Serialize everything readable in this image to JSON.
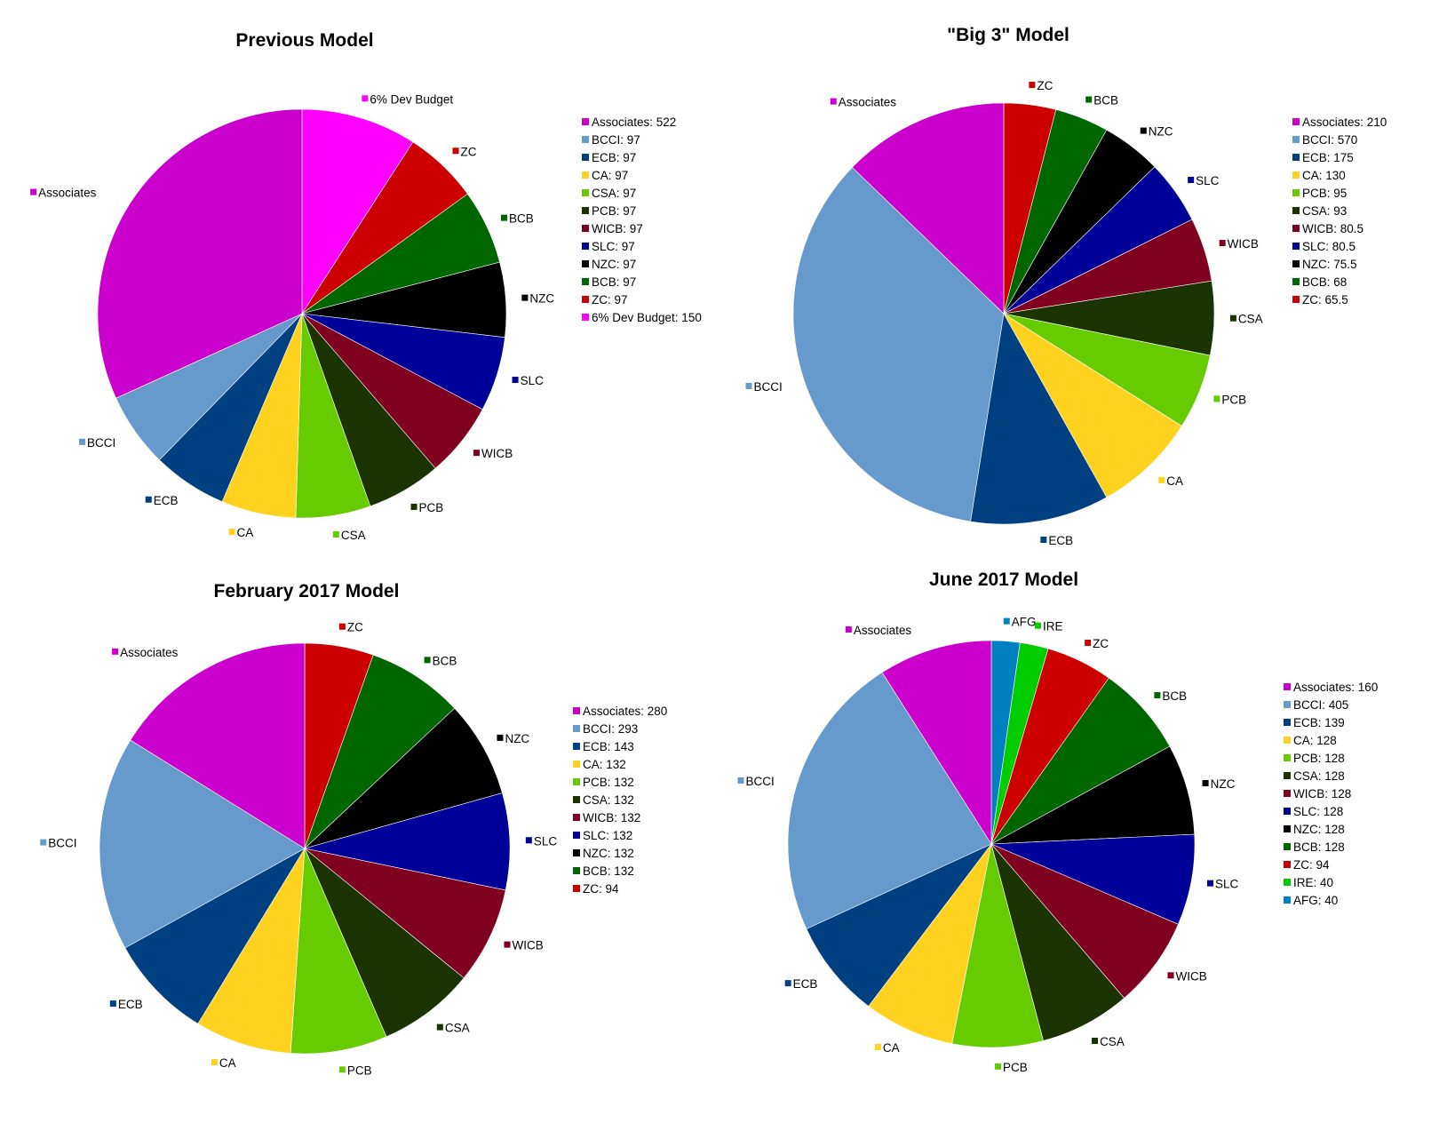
{
  "chart_data": [
    {
      "type": "pie",
      "title": "Previous Model",
      "legend_position": "right",
      "slices": [
        {
          "label": "Associates",
          "value": 522,
          "legend": "Associates: 522",
          "color": "#cc00cc"
        },
        {
          "label": "BCCI",
          "value": 97,
          "legend": "BCCI: 97",
          "color": "#6699cc"
        },
        {
          "label": "ECB",
          "value": 97,
          "legend": "ECB: 97",
          "color": "#004080"
        },
        {
          "label": "CA",
          "value": 97,
          "legend": "CA: 97",
          "color": "#ffd21f"
        },
        {
          "label": "CSA",
          "value": 97,
          "legend": "CSA: 97",
          "color": "#66cc00"
        },
        {
          "label": "PCB",
          "value": 97,
          "legend": "PCB: 97",
          "color": "#1a3300"
        },
        {
          "label": "WICB",
          "value": 97,
          "legend": "WICB: 97",
          "color": "#800020"
        },
        {
          "label": "SLC",
          "value": 97,
          "legend": "SLC: 97",
          "color": "#000099"
        },
        {
          "label": "NZC",
          "value": 97,
          "legend": "NZC: 97",
          "color": "#000000"
        },
        {
          "label": "BCB",
          "value": 97,
          "legend": "BCB: 97",
          "color": "#006600"
        },
        {
          "label": "ZC",
          "value": 97,
          "legend": "ZC: 97",
          "color": "#cc0000"
        },
        {
          "label": "6% Dev Budget",
          "value": 150,
          "legend": "6% Dev Budget: 150",
          "color": "#ff00ff"
        }
      ]
    },
    {
      "type": "pie",
      "title": "\"Big 3\" Model",
      "legend_position": "right",
      "slices": [
        {
          "label": "Associates",
          "value": 210,
          "legend": "Associates: 210",
          "color": "#cc00cc"
        },
        {
          "label": "BCCI",
          "value": 570,
          "legend": "BCCI: 570",
          "color": "#6699cc"
        },
        {
          "label": "ECB",
          "value": 175,
          "legend": "ECB: 175",
          "color": "#004080"
        },
        {
          "label": "CA",
          "value": 130,
          "legend": "CA: 130",
          "color": "#ffd21f"
        },
        {
          "label": "PCB",
          "value": 95,
          "legend": "PCB: 95",
          "color": "#66cc00"
        },
        {
          "label": "CSA",
          "value": 93,
          "legend": "CSA: 93",
          "color": "#1a3300"
        },
        {
          "label": "WICB",
          "value": 80.5,
          "legend": "WICB: 80.5",
          "color": "#800020"
        },
        {
          "label": "SLC",
          "value": 80.5,
          "legend": "SLC: 80.5",
          "color": "#000099"
        },
        {
          "label": "NZC",
          "value": 75.5,
          "legend": "NZC: 75.5",
          "color": "#000000"
        },
        {
          "label": "BCB",
          "value": 68,
          "legend": "BCB: 68",
          "color": "#006600"
        },
        {
          "label": "ZC",
          "value": 65.5,
          "legend": "ZC: 65.5",
          "color": "#cc0000"
        }
      ]
    },
    {
      "type": "pie",
      "title": "February 2017 Model",
      "legend_position": "right",
      "slices": [
        {
          "label": "Associates",
          "value": 280,
          "legend": "Associates: 280",
          "color": "#cc00cc"
        },
        {
          "label": "BCCI",
          "value": 293,
          "legend": "BCCI: 293",
          "color": "#6699cc"
        },
        {
          "label": "ECB",
          "value": 143,
          "legend": "ECB: 143",
          "color": "#004080"
        },
        {
          "label": "CA",
          "value": 132,
          "legend": "CA: 132",
          "color": "#ffd21f"
        },
        {
          "label": "PCB",
          "value": 132,
          "legend": "PCB: 132",
          "color": "#66cc00"
        },
        {
          "label": "CSA",
          "value": 132,
          "legend": "CSA: 132",
          "color": "#1a3300"
        },
        {
          "label": "WICB",
          "value": 132,
          "legend": "WICB: 132",
          "color": "#800020"
        },
        {
          "label": "SLC",
          "value": 132,
          "legend": "SLC: 132",
          "color": "#000099"
        },
        {
          "label": "NZC",
          "value": 132,
          "legend": "NZC: 132",
          "color": "#000000"
        },
        {
          "label": "BCB",
          "value": 132,
          "legend": "BCB: 132",
          "color": "#006600"
        },
        {
          "label": "ZC",
          "value": 94,
          "legend": "ZC: 94",
          "color": "#cc0000"
        }
      ]
    },
    {
      "type": "pie",
      "title": "June 2017 Model",
      "legend_position": "right",
      "slices": [
        {
          "label": "Associates",
          "value": 160,
          "legend": "Associates: 160",
          "color": "#cc00cc"
        },
        {
          "label": "BCCI",
          "value": 405,
          "legend": "BCCI: 405",
          "color": "#6699cc"
        },
        {
          "label": "ECB",
          "value": 139,
          "legend": "ECB: 139",
          "color": "#004080"
        },
        {
          "label": "CA",
          "value": 128,
          "legend": "CA: 128",
          "color": "#ffd21f"
        },
        {
          "label": "PCB",
          "value": 128,
          "legend": "PCB: 128",
          "color": "#66cc00"
        },
        {
          "label": "CSA",
          "value": 128,
          "legend": "CSA: 128",
          "color": "#1a3300"
        },
        {
          "label": "WICB",
          "value": 128,
          "legend": "WICB: 128",
          "color": "#800020"
        },
        {
          "label": "SLC",
          "value": 128,
          "legend": "SLC: 128",
          "color": "#000099"
        },
        {
          "label": "NZC",
          "value": 128,
          "legend": "NZC: 128",
          "color": "#000000"
        },
        {
          "label": "BCB",
          "value": 128,
          "legend": "BCB: 128",
          "color": "#006600"
        },
        {
          "label": "ZC",
          "value": 94,
          "legend": "ZC: 94",
          "color": "#cc0000"
        },
        {
          "label": "IRE",
          "value": 40,
          "legend": "IRE: 40",
          "color": "#00cc00"
        },
        {
          "label": "AFG",
          "value": 40,
          "legend": "AFG: 40",
          "color": "#0080c0"
        }
      ]
    }
  ]
}
